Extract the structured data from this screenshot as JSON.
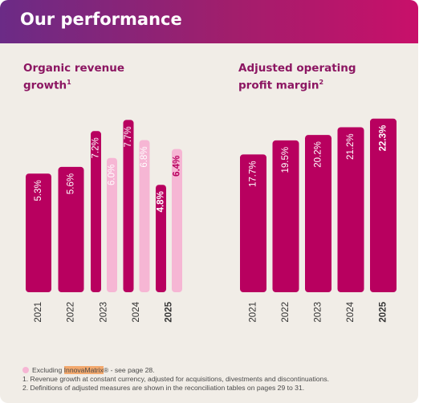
{
  "header": {
    "title": "Our performance"
  },
  "colors": {
    "primary": "#b8005f",
    "light": "#f6b6d4",
    "title": "#8c1662"
  },
  "chart_data": [
    {
      "type": "bar",
      "title": "Organic revenue growth",
      "title_sup": "1",
      "categories": [
        "2021",
        "2022",
        "2023",
        "2024",
        "2025"
      ],
      "highlight_category": "2025",
      "series": [
        {
          "values": [
            5.3,
            5.6,
            7.2,
            7.7,
            4.8
          ],
          "labels": [
            "5.3%",
            "5.6%",
            "7.2%",
            "7.7%",
            "4.8%"
          ]
        },
        {
          "name": "Excluding InnovaMatrix",
          "values": [
            null,
            null,
            6.0,
            6.8,
            6.4
          ],
          "labels": [
            "",
            "",
            "6.0%",
            "6.8%",
            "6.4%"
          ]
        }
      ],
      "ylim": [
        0,
        8
      ]
    },
    {
      "type": "bar",
      "title": "Adjusted operating profit margin",
      "title_sup": "2",
      "categories": [
        "2021",
        "2022",
        "2023",
        "2024",
        "2025"
      ],
      "highlight_category": "2025",
      "series": [
        {
          "values": [
            17.7,
            19.5,
            20.2,
            21.2,
            22.3
          ],
          "labels": [
            "17.7%",
            "19.5%",
            "20.2%",
            "21.2%",
            "22.3%"
          ]
        }
      ],
      "ylim": [
        0,
        23
      ]
    }
  ],
  "footnotes": {
    "legend_prefix": "Excluding ",
    "legend_highlight": "InnovaMatrix",
    "legend_suffix": "® - see page 28.",
    "note1": "1.  Revenue growth at constant currency, adjusted for acquisitions, divestments and discontinuations.",
    "note2": "2.  Definitions of adjusted measures are shown in the reconciliation tables on pages 29 to 31."
  }
}
